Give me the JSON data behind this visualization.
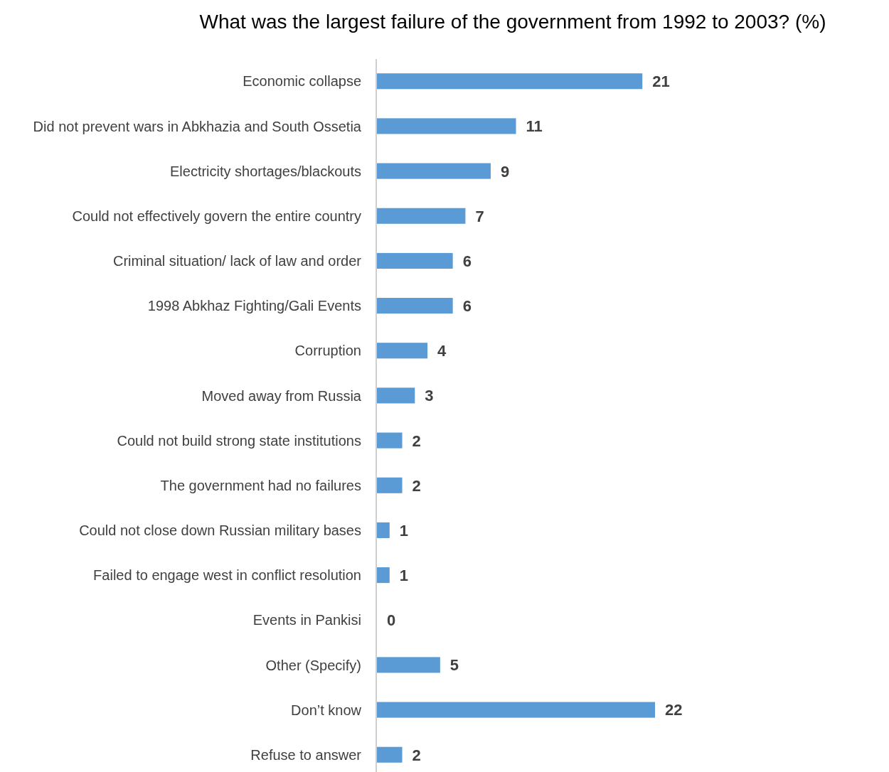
{
  "chart_data": {
    "type": "bar",
    "orientation": "horizontal",
    "title": "What was the largest failure of the government from 1992 to 2003? (%)",
    "categories": [
      "Economic collapse",
      "Did not prevent wars in Abkhazia and South Ossetia",
      "Electricity shortages/blackouts",
      "Could not effectively govern the entire country",
      "Criminal situation/ lack of law and order",
      "1998 Abkhaz Fighting/Gali Events",
      "Corruption",
      "Moved away from Russia",
      "Could not build strong state institutions",
      "The government had no failures",
      "Could not close down Russian military bases",
      "Failed to engage west in conflict resolution",
      "Events in Pankisi",
      "Other (Specify)",
      "Don’t know",
      "Refuse to answer"
    ],
    "values": [
      21,
      11,
      9,
      7,
      6,
      6,
      4,
      3,
      2,
      2,
      1,
      1,
      0,
      5,
      22,
      2
    ],
    "color": "#5b9bd5",
    "data_labels": true
  }
}
